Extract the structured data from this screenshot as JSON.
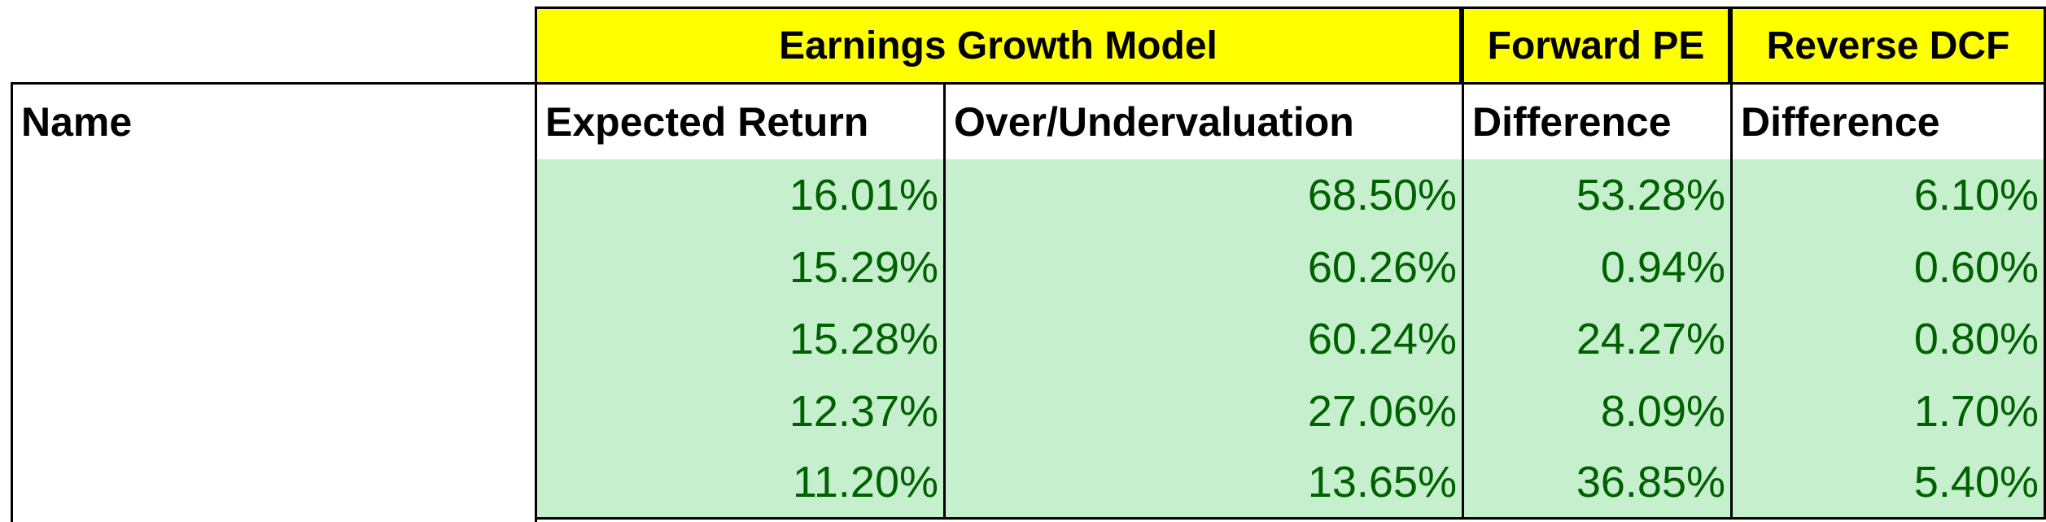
{
  "table": {
    "groups": [
      {
        "label": "Earnings Growth Model"
      },
      {
        "label": "Forward PE"
      },
      {
        "label": "Reverse DCF"
      }
    ],
    "columns": [
      "Name",
      "Expected Return",
      "Over/Undervaluation",
      "Difference",
      "Difference"
    ],
    "rows": [
      [
        "16.01%",
        "68.50%",
        "53.28%",
        "6.10%"
      ],
      [
        "15.29%",
        "60.26%",
        "0.94%",
        "0.60%"
      ],
      [
        "15.28%",
        "60.24%",
        "24.27%",
        "0.80%"
      ],
      [
        "12.37%",
        "27.06%",
        "8.09%",
        "1.70%"
      ],
      [
        "11.20%",
        "13.65%",
        "36.85%",
        "5.40%"
      ]
    ]
  }
}
